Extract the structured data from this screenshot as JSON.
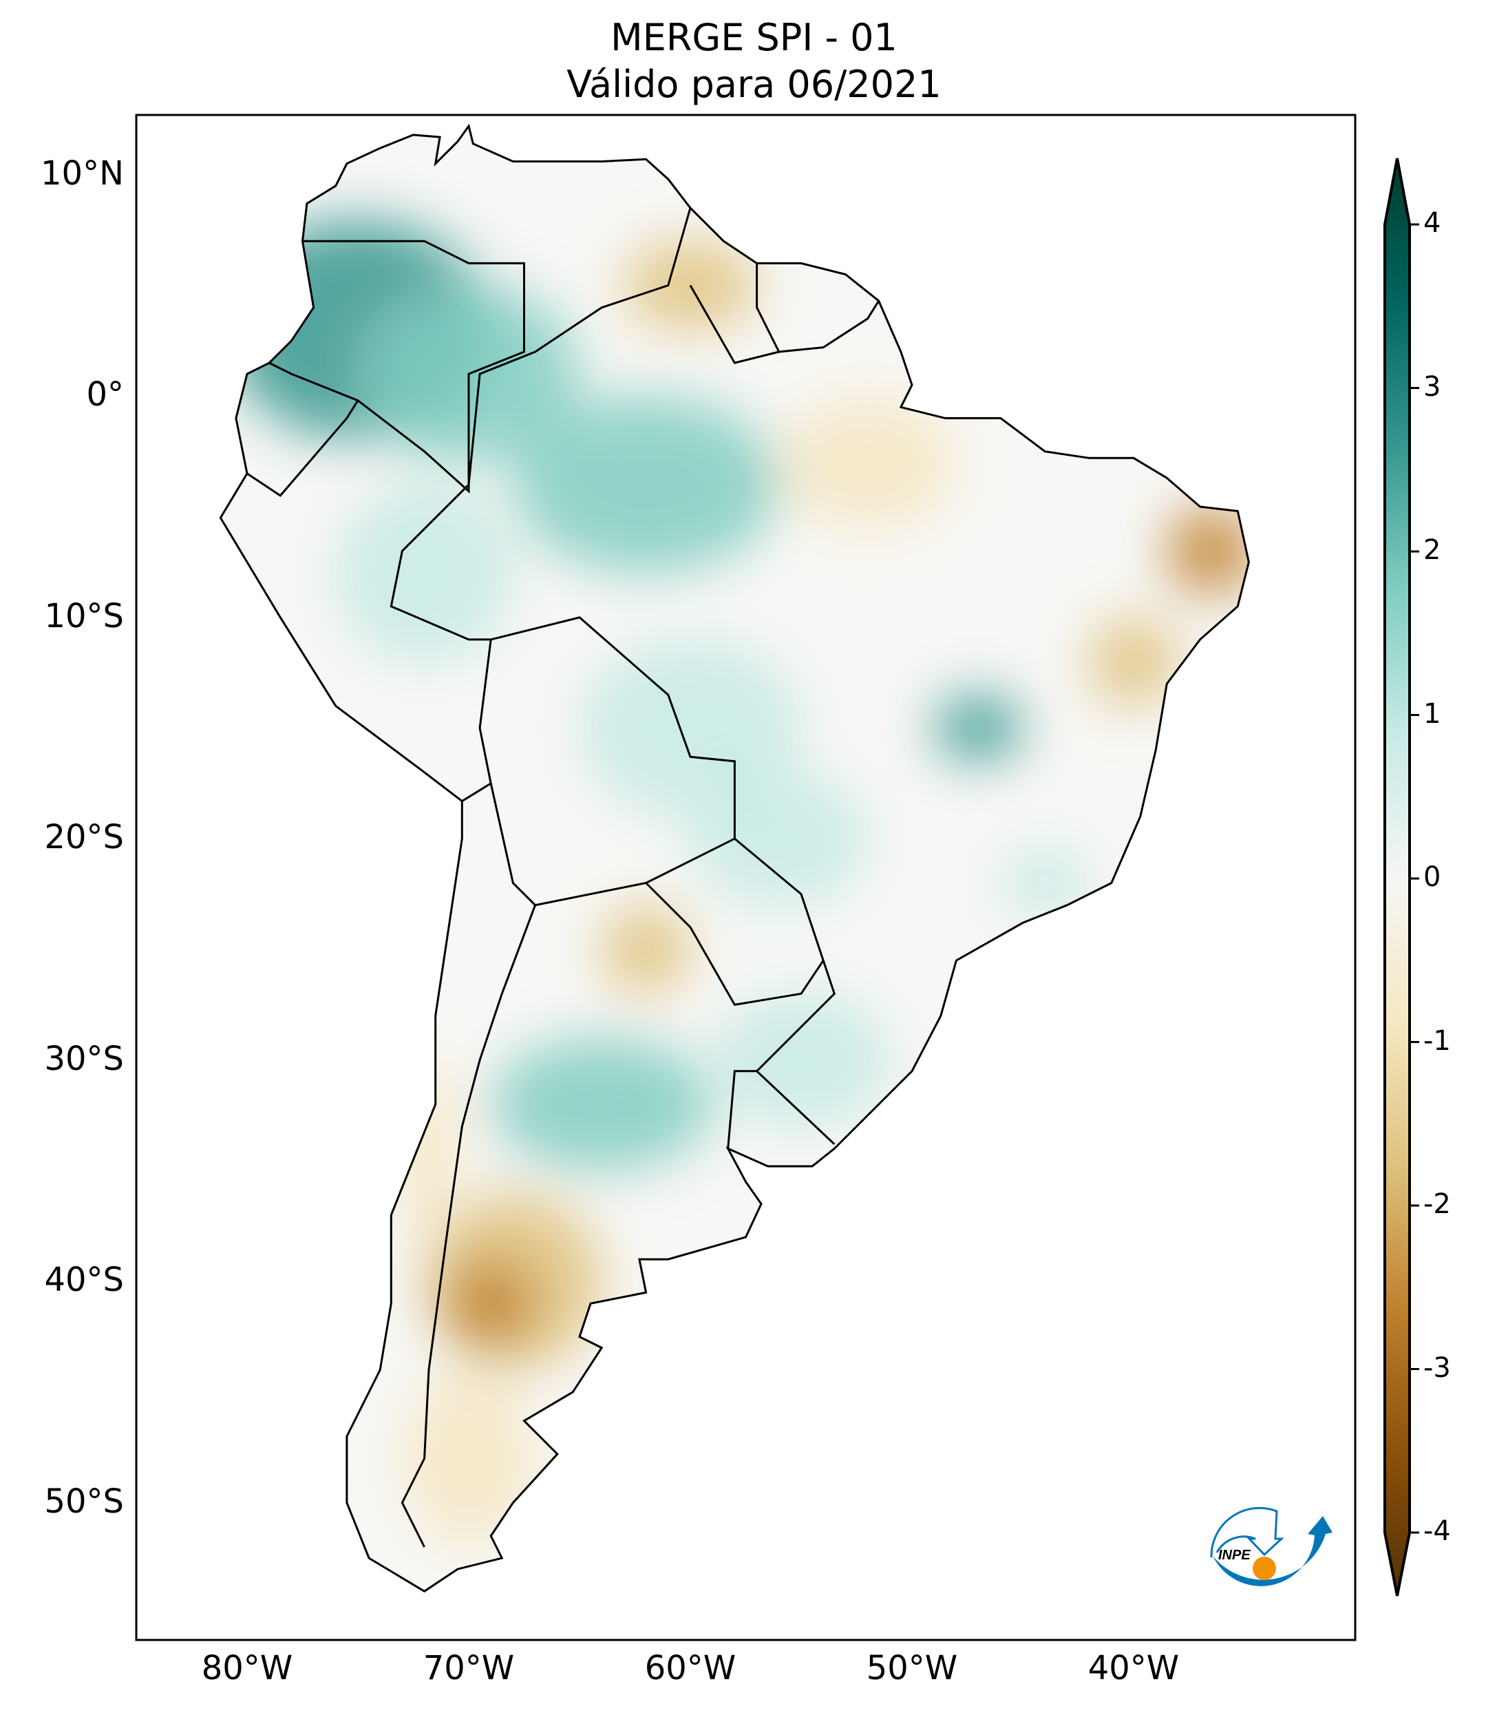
{
  "title": {
    "line1": "MERGE   SPI - 01",
    "line2": "Válido para 06/2021"
  },
  "map": {
    "extent_lon": [
      -85,
      -30
    ],
    "extent_lat": [
      -56.2,
      12.7
    ],
    "lat_ticks": [
      {
        "value": 10,
        "label": "10°N"
      },
      {
        "value": 0,
        "label": "0°"
      },
      {
        "value": -10,
        "label": "10°S"
      },
      {
        "value": -20,
        "label": "20°S"
      },
      {
        "value": -30,
        "label": "30°S"
      },
      {
        "value": -40,
        "label": "40°S"
      },
      {
        "value": -50,
        "label": "50°S"
      }
    ],
    "lon_ticks": [
      {
        "value": -80,
        "label": "80°W"
      },
      {
        "value": -70,
        "label": "70°W"
      },
      {
        "value": -60,
        "label": "60°W"
      },
      {
        "value": -50,
        "label": "50°W"
      },
      {
        "value": -40,
        "label": "40°W"
      }
    ]
  },
  "colorbar": {
    "min": -4,
    "max": 4,
    "ticks": [
      {
        "value": 4,
        "label": "4"
      },
      {
        "value": 3,
        "label": "3"
      },
      {
        "value": 2,
        "label": "2"
      },
      {
        "value": 1,
        "label": "1"
      },
      {
        "value": 0,
        "label": "0"
      },
      {
        "value": -1,
        "label": "-1"
      },
      {
        "value": -2,
        "label": "-2"
      },
      {
        "value": -3,
        "label": "-3"
      },
      {
        "value": -4,
        "label": "-4"
      }
    ],
    "colors": [
      "#543005",
      "#8c510a",
      "#bf812d",
      "#dfc27d",
      "#f6e8c3",
      "#f5f5f5",
      "#c7eae5",
      "#80cdc1",
      "#35978f",
      "#01665e",
      "#003c30"
    ]
  },
  "logo": {
    "text": "INPE",
    "blue": "#0077b8",
    "orange": "#f39200"
  }
}
